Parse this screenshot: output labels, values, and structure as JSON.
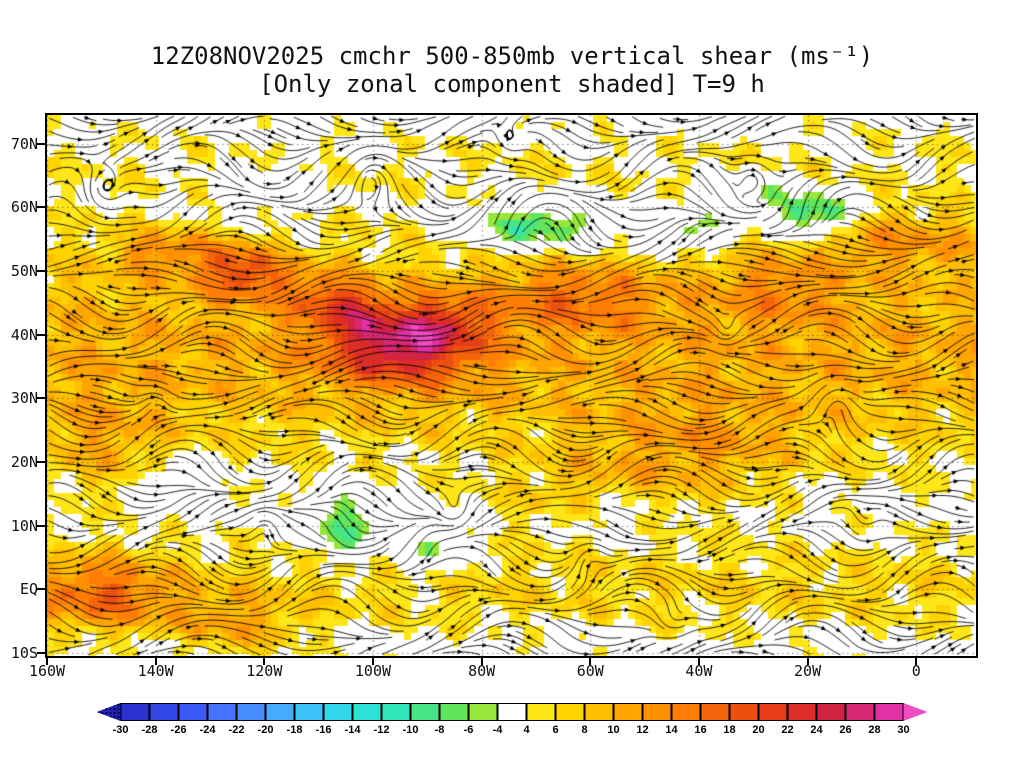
{
  "chart_data": {
    "type": "heatmap",
    "overlay": "streamlines",
    "title": "12Z08NOV2025 cmchr 500-850mb vertical shear (ms⁻¹)",
    "subtitle": "[Only zonal component shaded] T=9 h",
    "units": "ms⁻¹",
    "lon_range": [
      -160,
      11
    ],
    "lat_range": [
      -10.5,
      74.5
    ],
    "grid": "dotted graticule every 10 deg lat / 20 deg lon",
    "y_ticks": [
      {
        "label": "70N",
        "value": 70
      },
      {
        "label": "60N",
        "value": 60
      },
      {
        "label": "50N",
        "value": 50
      },
      {
        "label": "40N",
        "value": 40
      },
      {
        "label": "30N",
        "value": 30
      },
      {
        "label": "20N",
        "value": 20
      },
      {
        "label": "10N",
        "value": 10
      },
      {
        "label": "EQ",
        "value": 0
      },
      {
        "label": "10S",
        "value": -10
      }
    ],
    "x_ticks": [
      {
        "label": "160W",
        "value": -160
      },
      {
        "label": "140W",
        "value": -140
      },
      {
        "label": "120W",
        "value": -120
      },
      {
        "label": "100W",
        "value": -100
      },
      {
        "label": "80W",
        "value": -80
      },
      {
        "label": "60W",
        "value": -60
      },
      {
        "label": "40W",
        "value": -40
      },
      {
        "label": "20W",
        "value": -20
      },
      {
        "label": "0",
        "value": 0
      }
    ],
    "colorbar": {
      "levels": [
        -30,
        -28,
        -26,
        -24,
        -22,
        -20,
        -18,
        -16,
        -14,
        -12,
        -10,
        -8,
        -6,
        -4,
        4,
        6,
        8,
        10,
        12,
        14,
        16,
        18,
        20,
        22,
        24,
        26,
        28,
        30
      ],
      "colors": [
        "#2222b4",
        "#2a32d2",
        "#3246e6",
        "#3c5af5",
        "#4673ff",
        "#468cff",
        "#46aaff",
        "#3cc3fa",
        "#32d7eb",
        "#2ee1d7",
        "#32e6b9",
        "#46e687",
        "#5fe65a",
        "#96e63c",
        "#ffffff",
        "#ffe619",
        "#ffd200",
        "#ffbe00",
        "#ffa500",
        "#ff9100",
        "#ff7d05",
        "#f5640a",
        "#eb500f",
        "#e63c19",
        "#dc2d28",
        "#d22341",
        "#d72873",
        "#e132a5",
        "#f14bc3"
      ]
    },
    "field_model": {
      "base_zonal": [
        [
          38,
          20,
          10
        ],
        [
          0,
          9,
          6
        ],
        [
          68,
          7,
          3
        ]
      ],
      "blobs": [
        [
          -95,
          38,
          17,
          13,
          5.5
        ],
        [
          -104,
          44,
          10,
          7,
          4
        ],
        [
          -87,
          42,
          8,
          8,
          4
        ],
        [
          -124,
          50,
          13,
          7,
          4
        ],
        [
          -138,
          53,
          8,
          10,
          4
        ],
        [
          -112,
          47,
          6,
          8,
          4
        ],
        [
          -63,
          46,
          8,
          16,
          5
        ],
        [
          -25,
          48,
          6,
          12,
          6
        ],
        [
          -8,
          55,
          7,
          8,
          5
        ],
        [
          5,
          55,
          6,
          8,
          5
        ],
        [
          -150,
          -1,
          11,
          13,
          6
        ],
        [
          -125,
          -6,
          7,
          12,
          5
        ],
        [
          -40,
          22,
          6,
          20,
          8
        ],
        [
          -150,
          22,
          5,
          12,
          8
        ],
        [
          -60,
          15,
          5,
          18,
          6
        ],
        [
          -70,
          57,
          -13,
          13,
          3.5
        ],
        [
          -42,
          56,
          -9,
          9,
          3
        ],
        [
          -18,
          59,
          -15,
          7,
          3
        ],
        [
          -30,
          62,
          -8,
          8,
          3
        ],
        [
          -105,
          10,
          -11,
          6,
          5
        ],
        [
          -90,
          6,
          -8,
          7,
          4
        ],
        [
          -135,
          16,
          -7,
          7,
          4
        ],
        [
          -55,
          12,
          -5,
          8,
          4
        ],
        [
          -120,
          63,
          -6,
          8,
          4
        ]
      ],
      "vortices": [
        [
          -150,
          62,
          6,
          4
        ],
        [
          -100,
          65,
          -5,
          4
        ],
        [
          -85,
          12,
          5,
          3
        ],
        [
          -60,
          5,
          -5,
          3
        ],
        [
          -35,
          40,
          5,
          3
        ],
        [
          -15,
          30,
          -5,
          4
        ],
        [
          -140,
          30,
          -4,
          3
        ],
        [
          -75,
          70,
          5,
          3
        ],
        [
          -45,
          -5,
          4,
          3
        ],
        [
          -10,
          10,
          4,
          3
        ],
        [
          -120,
          10,
          -4,
          3
        ],
        [
          -30,
          65,
          -6,
          3
        ]
      ]
    }
  }
}
